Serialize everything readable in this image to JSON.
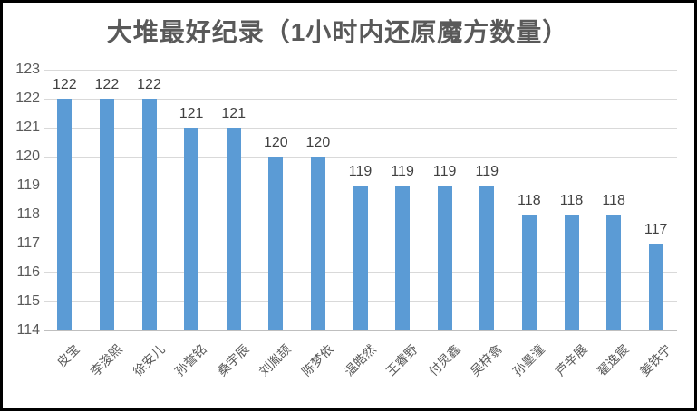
{
  "chart_data": {
    "type": "bar",
    "title": "大堆最好纪录（1小时内还原魔方数量）",
    "categories": [
      "皮宝",
      "李浚熙",
      "徐安儿",
      "孙誉铭",
      "桑宇辰",
      "刘胤颉",
      "陈梦依",
      "温皓然",
      "王睿野",
      "付炅鑫",
      "吴梓翕",
      "孙墨潼",
      "芦辛展",
      "翟逸宸",
      "姜铁宁"
    ],
    "values": [
      122,
      122,
      122,
      121,
      121,
      120,
      120,
      119,
      119,
      119,
      119,
      118,
      118,
      118,
      117
    ],
    "data_labels": [
      122,
      122,
      122,
      121,
      121,
      120,
      120,
      119,
      119,
      119,
      119,
      118,
      118,
      118,
      117
    ],
    "xlabel": "",
    "ylabel": "",
    "ylim": [
      114,
      123
    ],
    "yticks": [
      114,
      115,
      116,
      117,
      118,
      119,
      120,
      121,
      122,
      123
    ],
    "grid": true,
    "legend_position": "none",
    "colors": {
      "bar": "#5b9bd5",
      "gridline": "#d9d9d9",
      "axis_line": "#bfbfbf",
      "title_text": "#595959",
      "tick_text": "#595959",
      "data_label_text": "#404040",
      "frame_border": "#000000"
    }
  }
}
